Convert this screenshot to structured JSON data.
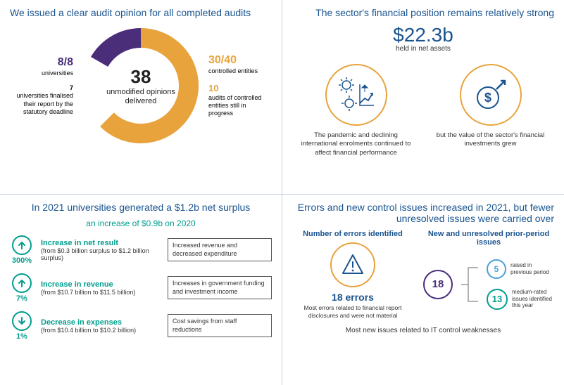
{
  "colors": {
    "blue": "#1a5490",
    "lightblue": "#4aa0d5",
    "orange": "#e8a33d",
    "purple": "#4a2e7a",
    "teal": "#009e8e",
    "grey": "#333333"
  },
  "top_left": {
    "title": "We issued a clear audit opinion for all completed audits",
    "donut": {
      "type": "donut",
      "total": 48,
      "segments": [
        {
          "label": "universities",
          "value": 8,
          "color": "#4a2e7a"
        },
        {
          "label": "controlled entities",
          "value": 30,
          "color": "#e8a33d"
        },
        {
          "label": "in progress",
          "value": 10,
          "color": "#ffffff"
        }
      ],
      "center_number": "38",
      "center_text": "unmodified opinions delivered",
      "outer_radius": 82,
      "inner_radius": 54
    },
    "left_label_num": "8/8",
    "left_label_text": "universities",
    "left_sub_num": "7",
    "left_sub_text": "universities finalised their report by the statutory deadline",
    "right_label_num": "30/40",
    "right_label_text": "controlled entities",
    "right_sub_num": "10",
    "right_sub_text": "audits of controlled entities still in progress"
  },
  "top_right": {
    "title": "The sector's financial position remains relatively strong",
    "stat": "$22.3b",
    "stat_sub": "held in net assets",
    "icon1_caption": "The pandemic and declining international enrolments continued to affect financial performance",
    "icon2_caption": "but the value of the sector's financial investments grew"
  },
  "bottom_left": {
    "title": "In 2021 universities generated a $1.2b net surplus",
    "subtitle": "an increase of $0.9b on 2020",
    "rows": [
      {
        "dir": "up",
        "pct": "300%",
        "title": "Increase in net result",
        "sub": "(from $0.3 billion surplus to $1.2 billion surplus)",
        "box": "Increased revenue and decreased expenditure"
      },
      {
        "dir": "up",
        "pct": "7%",
        "title": "Increase in revenue",
        "sub": "(from $10.7 billion to $11.5 billion)",
        "box": "Increases in government funding and investment income"
      },
      {
        "dir": "down",
        "pct": "1%",
        "title": "Decrease in expenses",
        "sub": "(from $10.4 billion to $10.2 billion)",
        "box": "Cost savings from staff reductions"
      }
    ]
  },
  "bottom_right": {
    "title": "Errors and new control issues increased in 2021, but fewer unresolved issues were carried over",
    "col1_title": "Number of errors identified",
    "col1_num": "18 errors",
    "col1_sub": "Most errors related to financial report disclosures and were not material",
    "col2_title": "New and unresolved prior-period issues",
    "tree_total": "18",
    "tree_a_num": "5",
    "tree_a_label": "raised in previous period",
    "tree_b_num": "13",
    "tree_b_label": "medium-rated issues identified this year",
    "footer": "Most new issues related to IT control weaknesses"
  }
}
